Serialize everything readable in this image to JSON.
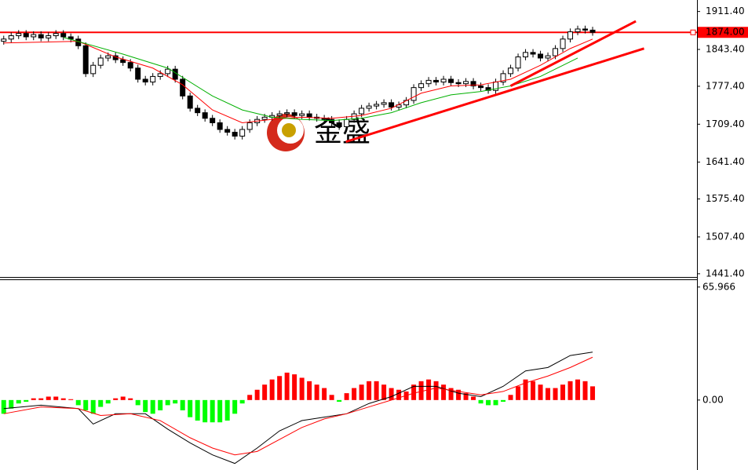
{
  "chart_data": [
    {
      "type": "candlestick",
      "xlim": [
        -0.5,
        93
      ],
      "ylim": [
        1437,
        1932
      ],
      "yticks": [
        {
          "value": 1911.4,
          "label": "1911.40"
        },
        {
          "value": 1843.4,
          "label": "1843.40"
        },
        {
          "value": 1777.4,
          "label": "1777.40"
        },
        {
          "value": 1709.4,
          "label": "1709.40"
        },
        {
          "value": 1641.4,
          "label": "1641.40"
        },
        {
          "value": 1575.4,
          "label": "1575.40"
        },
        {
          "value": 1507.4,
          "label": "1507.40"
        },
        {
          "value": 1441.4,
          "label": "1441.40"
        }
      ],
      "open": [
        1858,
        1862,
        1868,
        1872,
        1866,
        1870,
        1864,
        1868,
        1872,
        1866,
        1862,
        1850,
        1800,
        1815,
        1828,
        1832,
        1825,
        1820,
        1810,
        1790,
        1785,
        1795,
        1800,
        1808,
        1790,
        1760,
        1738,
        1730,
        1720,
        1712,
        1700,
        1695,
        1688,
        1700,
        1712,
        1718,
        1722,
        1725,
        1728,
        1730,
        1725,
        1728,
        1722,
        1720,
        1718,
        1712,
        1705,
        1718,
        1728,
        1738,
        1742,
        1745,
        1748,
        1740,
        1744,
        1752,
        1775,
        1782,
        1788,
        1785,
        1790,
        1784,
        1782,
        1786,
        1778,
        1775,
        1770,
        1785,
        1800,
        1810,
        1830,
        1838,
        1835,
        1828,
        1832,
        1845,
        1862,
        1875,
        1880,
        1878
      ],
      "high": [
        1868,
        1874,
        1878,
        1878,
        1876,
        1876,
        1874,
        1878,
        1878,
        1872,
        1868,
        1856,
        1821,
        1834,
        1838,
        1838,
        1831,
        1826,
        1816,
        1796,
        1801,
        1806,
        1814,
        1814,
        1796,
        1766,
        1744,
        1736,
        1726,
        1718,
        1706,
        1701,
        1706,
        1718,
        1724,
        1728,
        1731,
        1734,
        1736,
        1736,
        1734,
        1734,
        1728,
        1726,
        1724,
        1718,
        1724,
        1734,
        1744,
        1748,
        1751,
        1754,
        1754,
        1750,
        1758,
        1781,
        1788,
        1794,
        1794,
        1796,
        1796,
        1790,
        1792,
        1792,
        1784,
        1781,
        1791,
        1806,
        1816,
        1836,
        1844,
        1844,
        1841,
        1838,
        1851,
        1868,
        1881,
        1886,
        1886,
        1884
      ],
      "low": [
        1852,
        1856,
        1862,
        1860,
        1860,
        1858,
        1858,
        1862,
        1860,
        1856,
        1844,
        1794,
        1794,
        1809,
        1822,
        1819,
        1814,
        1804,
        1784,
        1779,
        1779,
        1789,
        1794,
        1784,
        1754,
        1732,
        1724,
        1714,
        1706,
        1694,
        1689,
        1682,
        1682,
        1694,
        1706,
        1712,
        1716,
        1719,
        1722,
        1719,
        1719,
        1716,
        1714,
        1712,
        1706,
        1699,
        1699,
        1712,
        1722,
        1732,
        1736,
        1739,
        1734,
        1734,
        1738,
        1746,
        1769,
        1776,
        1779,
        1779,
        1778,
        1776,
        1776,
        1772,
        1769,
        1764,
        1764,
        1779,
        1794,
        1804,
        1824,
        1829,
        1822,
        1822,
        1826,
        1839,
        1856,
        1869,
        1872,
        1868
      ],
      "close": [
        1862,
        1868,
        1872,
        1866,
        1870,
        1864,
        1868,
        1872,
        1866,
        1862,
        1850,
        1800,
        1815,
        1828,
        1832,
        1825,
        1820,
        1810,
        1790,
        1785,
        1795,
        1800,
        1808,
        1790,
        1760,
        1738,
        1730,
        1720,
        1712,
        1700,
        1695,
        1688,
        1700,
        1712,
        1718,
        1722,
        1725,
        1728,
        1730,
        1725,
        1728,
        1722,
        1720,
        1718,
        1712,
        1705,
        1718,
        1728,
        1738,
        1742,
        1745,
        1748,
        1740,
        1744,
        1752,
        1775,
        1782,
        1788,
        1785,
        1790,
        1784,
        1782,
        1786,
        1778,
        1775,
        1770,
        1785,
        1800,
        1810,
        1830,
        1838,
        1835,
        1828,
        1832,
        1845,
        1862,
        1875,
        1880,
        1878,
        1874
      ],
      "up_color": "#ffffff",
      "down_color": "#000000",
      "series": [
        {
          "color": "#ff0000",
          "x": [
            0,
            10,
            15,
            20,
            24,
            28,
            32,
            36,
            40,
            44,
            48,
            52,
            56,
            60,
            64,
            68,
            72,
            76,
            79
          ],
          "values": [
            1855,
            1858,
            1830,
            1810,
            1780,
            1735,
            1712,
            1718,
            1722,
            1720,
            1725,
            1738,
            1765,
            1778,
            1780,
            1790,
            1815,
            1845,
            1862
          ]
        },
        {
          "color": "#00b000",
          "x": [
            8,
            16,
            22,
            28,
            32,
            36,
            40,
            44,
            48,
            52,
            56,
            60,
            64,
            68,
            72,
            77
          ],
          "values": [
            1865,
            1835,
            1810,
            1760,
            1735,
            1722,
            1718,
            1716,
            1720,
            1730,
            1748,
            1762,
            1768,
            1778,
            1795,
            1828
          ]
        }
      ],
      "trendlines": [
        {
          "color": "#ff0000",
          "x": [
            45.9,
            85.9
          ],
          "values": [
            1678,
            1845
          ]
        },
        {
          "color": "#ff0000",
          "x": [
            68,
            84.8
          ],
          "values": [
            1778,
            1894
          ]
        }
      ],
      "last_price": {
        "value": 1874,
        "label": "1874.00"
      },
      "price_color": "#ff0000",
      "watermark": "金盛"
    },
    {
      "type": "macd",
      "xlim": [
        -0.5,
        93
      ],
      "ylim": [
        -39,
        70
      ],
      "yticks": [
        65.966,
        {
          "value": 0,
          "label": "0.00"
        }
      ],
      "values": [
        -8,
        -5,
        -2,
        -1,
        1,
        1,
        2,
        2,
        1,
        0.5,
        -3,
        -6,
        -8,
        -4,
        -2,
        1,
        2,
        1,
        -3,
        -7,
        -8,
        -6,
        -3,
        -2,
        -6,
        -10,
        -12,
        -13,
        -13,
        -13,
        -12,
        -8,
        -2,
        3,
        6,
        9,
        12,
        14,
        16,
        15,
        13,
        11,
        9,
        7,
        3,
        -1,
        4,
        7,
        9,
        11,
        11,
        9,
        7,
        6,
        5,
        9,
        11,
        12,
        11,
        9,
        7,
        6,
        4,
        2,
        -2,
        -3,
        -3,
        -1,
        3,
        8,
        12,
        11,
        9,
        7,
        7,
        9,
        11,
        12,
        11,
        8
      ],
      "pos_color": "#ff0000",
      "neg_color": "#00ff00",
      "series": [
        {
          "color": "#000000",
          "x": [
            0,
            5,
            10,
            12,
            15,
            19,
            22,
            25,
            28,
            31,
            34,
            37,
            40,
            43,
            46,
            49,
            52,
            55,
            58,
            61,
            64,
            67,
            70,
            73,
            76,
            79
          ],
          "values": [
            -5,
            -3,
            -5,
            -14,
            -8,
            -8,
            -17,
            -25,
            -32,
            -37,
            -28,
            -18,
            -12,
            -10,
            -8,
            -2,
            2,
            8,
            8,
            4,
            2,
            8,
            17,
            19,
            26,
            28
          ]
        },
        {
          "color": "#ff0000",
          "x": [
            0,
            5,
            10,
            13,
            17,
            21,
            25,
            28,
            31,
            34,
            37,
            40,
            43,
            46,
            49,
            52,
            55,
            58,
            61,
            64,
            67,
            70,
            73,
            76,
            79
          ],
          "values": [
            -8,
            -4,
            -5,
            -9,
            -8,
            -12,
            -22,
            -28,
            -32,
            -30,
            -23,
            -16,
            -11,
            -8,
            -4,
            0,
            4,
            7,
            5,
            3,
            5,
            10,
            14,
            19,
            25
          ]
        }
      ]
    }
  ]
}
